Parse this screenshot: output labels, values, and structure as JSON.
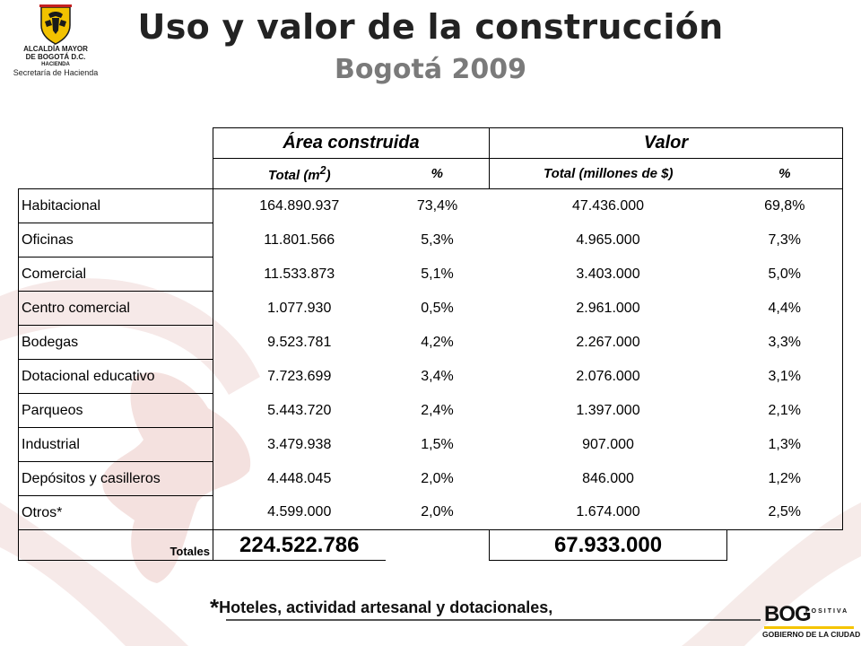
{
  "header": {
    "title": "Uso y valor de la construcción",
    "subtitle": "Bogotá 2009"
  },
  "logo": {
    "line1": "ALCALDÍA MAYOR",
    "line2": "DE BOGOTÁ D.C.",
    "line3": "HACIENDA",
    "line4": "Secretaría de Hacienda"
  },
  "table": {
    "group_headers": {
      "area": "Área construida",
      "value": "Valor"
    },
    "sub_headers": {
      "area_total": "Total (m²)",
      "area_pct": "%",
      "value_total": "Total (millones de $)",
      "value_pct": "%"
    },
    "rows": [
      {
        "category": "Habitacional",
        "area": "164.890.937",
        "area_pct": "73,4%",
        "value": "47.436.000",
        "value_pct": "69,8%"
      },
      {
        "category": "Oficinas",
        "area": "11.801.566",
        "area_pct": "5,3%",
        "value": "4.965.000",
        "value_pct": "7,3%"
      },
      {
        "category": "Comercial",
        "area": "11.533.873",
        "area_pct": "5,1%",
        "value": "3.403.000",
        "value_pct": "5,0%"
      },
      {
        "category": "Centro comercial",
        "area": "1.077.930",
        "area_pct": "0,5%",
        "value": "2.961.000",
        "value_pct": "4,4%"
      },
      {
        "category": "Bodegas",
        "area": "9.523.781",
        "area_pct": "4,2%",
        "value": "2.267.000",
        "value_pct": "3,3%"
      },
      {
        "category": "Dotacional educativo",
        "area": "7.723.699",
        "area_pct": "3,4%",
        "value": "2.076.000",
        "value_pct": "3,1%"
      },
      {
        "category": "Parqueos",
        "area": "5.443.720",
        "area_pct": "2,4%",
        "value": "1.397.000",
        "value_pct": "2,1%"
      },
      {
        "category": "Industrial",
        "area": "3.479.938",
        "area_pct": "1,5%",
        "value": "907.000",
        "value_pct": "1,3%"
      },
      {
        "category": "Depósitos y casilleros",
        "area": "4.448.045",
        "area_pct": "2,0%",
        "value": "846.000",
        "value_pct": "1,2%"
      },
      {
        "category": "Otros*",
        "area": "4.599.000",
        "area_pct": "2,0%",
        "value": "1.674.000",
        "value_pct": "2,5%"
      }
    ],
    "totals": {
      "label": "Totales",
      "area": "224.522.786",
      "value": "67.933.000"
    }
  },
  "footnote": {
    "star": "*",
    "text": "Hoteles, actividad artesanal y dotacionales,"
  },
  "brand": {
    "name": "BOG",
    "tagline_a": "POSITIVA",
    "line": "GOBIERNO DE LA CIUDAD"
  },
  "colors": {
    "watermark": "#f3e4e2",
    "title": "#222222",
    "subtitle": "#7a7a7a",
    "brand_yellow": "#f5c400"
  }
}
